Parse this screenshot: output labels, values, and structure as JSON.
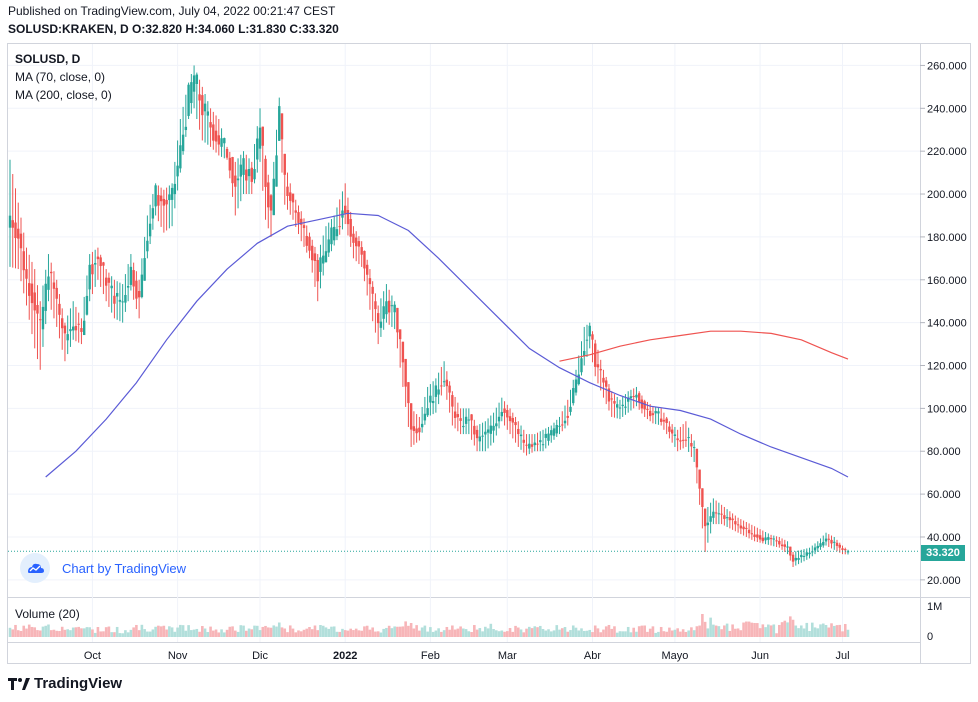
{
  "header": {
    "published": "Published on TradingView.com, July 04, 2022 00:21:47 CEST",
    "ohlc": "SOLUSD:KRAKEN, D O:32.820 H:34.060 L:31.830 C:33.320"
  },
  "legend": {
    "symbol": "SOLUSD, D",
    "ma70": "MA (70, close, 0)",
    "ma200": "MA (200, close, 0)",
    "volume": "Volume (20)"
  },
  "badge": {
    "text": "Chart by TradingView",
    "icon": "tradingview-cloud-icon"
  },
  "footer": {
    "text": "TradingView",
    "icon": "tradingview-logo-icon"
  },
  "price_tag": "33.320",
  "colors": {
    "up": "#26a69a",
    "down": "#ef5350",
    "ma70": "#5b5bd6",
    "ma200": "#ef5350",
    "vol_up": "#b2dfdb",
    "vol_down": "#f7b5b8",
    "grid": "#f0f3fa"
  },
  "chart_data": {
    "type": "candlestick",
    "symbol": "SOLUSD:KRAKEN",
    "interval": "D",
    "last": {
      "open": 32.82,
      "high": 34.06,
      "low": 31.83,
      "close": 33.32
    },
    "y_axis": {
      "ticks": [
        "20.000",
        "40.000",
        "60.000",
        "80.000",
        "100.000",
        "120.000",
        "140.000",
        "160.000",
        "180.000",
        "200.000",
        "220.000",
        "240.000",
        "260.000"
      ],
      "range": [
        12,
        270
      ]
    },
    "volume_axis": {
      "ticks": [
        "0",
        "1M"
      ]
    },
    "x_axis": {
      "ticks": [
        "Oct",
        "Nov",
        "Dic",
        "2022",
        "Feb",
        "Mar",
        "Abr",
        "Mayo",
        "Jun",
        "Jul"
      ]
    },
    "anchors": [
      [
        "2021-09-01",
        190,
        216,
        166
      ],
      [
        "2021-09-04",
        180,
        196,
        165
      ],
      [
        "2021-09-07",
        160,
        175,
        148
      ],
      [
        "2021-09-10",
        148,
        165,
        128
      ],
      [
        "2021-09-12",
        138,
        150,
        118
      ],
      [
        "2021-09-15",
        165,
        172,
        150
      ],
      [
        "2021-09-18",
        150,
        160,
        138
      ],
      [
        "2021-09-21",
        132,
        140,
        122
      ],
      [
        "2021-09-24",
        140,
        150,
        132
      ],
      [
        "2021-09-27",
        134,
        142,
        130
      ],
      [
        "2021-09-30",
        165,
        172,
        150
      ],
      [
        "2021-10-03",
        170,
        175,
        160
      ],
      [
        "2021-10-06",
        160,
        165,
        150
      ],
      [
        "2021-10-09",
        152,
        160,
        142
      ],
      [
        "2021-10-12",
        150,
        158,
        140
      ],
      [
        "2021-10-15",
        165,
        172,
        155
      ],
      [
        "2021-10-18",
        150,
        160,
        142
      ],
      [
        "2021-10-21",
        182,
        190,
        170
      ],
      [
        "2021-10-24",
        200,
        205,
        190
      ],
      [
        "2021-10-27",
        195,
        202,
        182
      ],
      [
        "2021-10-30",
        198,
        205,
        185
      ],
      [
        "2021-11-02",
        220,
        235,
        210
      ],
      [
        "2021-11-05",
        245,
        252,
        235
      ],
      [
        "2021-11-07",
        255,
        260,
        240
      ],
      [
        "2021-11-10",
        240,
        250,
        225
      ],
      [
        "2021-11-13",
        232,
        240,
        222
      ],
      [
        "2021-11-16",
        225,
        235,
        218
      ],
      [
        "2021-11-19",
        220,
        222,
        216
      ],
      [
        "2021-11-22",
        205,
        215,
        190
      ],
      [
        "2021-11-25",
        212,
        220,
        200
      ],
      [
        "2021-11-28",
        208,
        215,
        200
      ],
      [
        "2021-12-01",
        230,
        240,
        215
      ],
      [
        "2021-12-03",
        205,
        218,
        188
      ],
      [
        "2021-12-05",
        190,
        200,
        180
      ],
      [
        "2021-12-08",
        238,
        245,
        225
      ],
      [
        "2021-12-10",
        205,
        215,
        195
      ],
      [
        "2021-12-13",
        195,
        200,
        188
      ],
      [
        "2021-12-16",
        185,
        192,
        178
      ],
      [
        "2021-12-19",
        178,
        182,
        170
      ],
      [
        "2021-12-22",
        162,
        172,
        150
      ],
      [
        "2021-12-25",
        175,
        185,
        168
      ],
      [
        "2021-12-28",
        183,
        190,
        176
      ],
      [
        "2022-01-01",
        195,
        205,
        186
      ],
      [
        "2022-01-04",
        178,
        185,
        170
      ],
      [
        "2022-01-07",
        172,
        178,
        166
      ],
      [
        "2022-01-10",
        158,
        165,
        146
      ],
      [
        "2022-01-13",
        138,
        148,
        130
      ],
      [
        "2022-01-16",
        150,
        158,
        140
      ],
      [
        "2022-01-19",
        145,
        150,
        137
      ],
      [
        "2022-01-22",
        122,
        130,
        110
      ],
      [
        "2022-01-25",
        92,
        100,
        82
      ],
      [
        "2022-01-28",
        90,
        96,
        85
      ],
      [
        "2022-01-31",
        102,
        110,
        96
      ],
      [
        "2022-02-03",
        108,
        114,
        98
      ],
      [
        "2022-02-06",
        115,
        122,
        110
      ],
      [
        "2022-02-09",
        100,
        108,
        92
      ],
      [
        "2022-02-12",
        92,
        100,
        88
      ],
      [
        "2022-02-15",
        96,
        100,
        88
      ],
      [
        "2022-02-18",
        85,
        92,
        80
      ],
      [
        "2022-02-21",
        88,
        94,
        80
      ],
      [
        "2022-02-24",
        92,
        98,
        84
      ],
      [
        "2022-02-27",
        100,
        105,
        94
      ],
      [
        "2022-03-02",
        96,
        100,
        88
      ],
      [
        "2022-03-05",
        88,
        94,
        82
      ],
      [
        "2022-03-08",
        82,
        88,
        78
      ],
      [
        "2022-03-11",
        83,
        88,
        80
      ],
      [
        "2022-03-14",
        85,
        90,
        80
      ],
      [
        "2022-03-17",
        88,
        92,
        84
      ],
      [
        "2022-03-20",
        92,
        96,
        88
      ],
      [
        "2022-03-23",
        98,
        104,
        92
      ],
      [
        "2022-03-26",
        112,
        118,
        106
      ],
      [
        "2022-03-29",
        130,
        138,
        120
      ],
      [
        "2022-03-31",
        136,
        140,
        128
      ],
      [
        "2022-04-02",
        122,
        132,
        115
      ],
      [
        "2022-04-05",
        112,
        118,
        105
      ],
      [
        "2022-04-08",
        102,
        108,
        96
      ],
      [
        "2022-04-11",
        100,
        104,
        95
      ],
      [
        "2022-04-14",
        104,
        108,
        98
      ],
      [
        "2022-04-17",
        106,
        110,
        101
      ],
      [
        "2022-04-20",
        100,
        104,
        96
      ],
      [
        "2022-04-23",
        97,
        101,
        93
      ],
      [
        "2022-04-26",
        96,
        100,
        92
      ],
      [
        "2022-04-29",
        90,
        94,
        86
      ],
      [
        "2022-05-02",
        85,
        90,
        80
      ],
      [
        "2022-05-05",
        87,
        94,
        82
      ],
      [
        "2022-05-08",
        80,
        85,
        75
      ],
      [
        "2022-05-10",
        62,
        70,
        55
      ],
      [
        "2022-05-12",
        45,
        52,
        33
      ],
      [
        "2022-05-15",
        52,
        58,
        46
      ],
      [
        "2022-05-18",
        50,
        55,
        46
      ],
      [
        "2022-05-21",
        48,
        52,
        44
      ],
      [
        "2022-05-24",
        45,
        49,
        42
      ],
      [
        "2022-05-27",
        43,
        47,
        40
      ],
      [
        "2022-05-30",
        41,
        45,
        38
      ],
      [
        "2022-06-02",
        39,
        43,
        37
      ],
      [
        "2022-06-05",
        39,
        41,
        36
      ],
      [
        "2022-06-08",
        37,
        40,
        35
      ],
      [
        "2022-06-11",
        35,
        38,
        32
      ],
      [
        "2022-06-13",
        29,
        33,
        26
      ],
      [
        "2022-06-16",
        31,
        34,
        28
      ],
      [
        "2022-06-19",
        33,
        35,
        30
      ],
      [
        "2022-06-22",
        35,
        38,
        33
      ],
      [
        "2022-06-25",
        39,
        42,
        36
      ],
      [
        "2022-06-28",
        37,
        40,
        34
      ],
      [
        "2022-07-01",
        34,
        36,
        32
      ],
      [
        "2022-07-03",
        33.32,
        34.06,
        31.83
      ]
    ],
    "ma70_points": [
      [
        "2021-09-14",
        68
      ],
      [
        "2021-09-25",
        80
      ],
      [
        "2021-10-06",
        95
      ],
      [
        "2021-10-17",
        112
      ],
      [
        "2021-10-28",
        132
      ],
      [
        "2021-11-08",
        150
      ],
      [
        "2021-11-19",
        165
      ],
      [
        "2021-11-30",
        177
      ],
      [
        "2021-12-11",
        185
      ],
      [
        "2021-12-22",
        188
      ],
      [
        "2022-01-02",
        191
      ],
      [
        "2022-01-13",
        190
      ],
      [
        "2022-01-24",
        183
      ],
      [
        "2022-02-04",
        170
      ],
      [
        "2022-02-15",
        156
      ],
      [
        "2022-02-26",
        142
      ],
      [
        "2022-03-09",
        128
      ],
      [
        "2022-03-20",
        119
      ],
      [
        "2022-03-31",
        112
      ],
      [
        "2022-04-11",
        106
      ],
      [
        "2022-04-22",
        101
      ],
      [
        "2022-05-03",
        99
      ],
      [
        "2022-05-14",
        95
      ],
      [
        "2022-05-25",
        88
      ],
      [
        "2022-06-05",
        82
      ],
      [
        "2022-06-16",
        77
      ],
      [
        "2022-06-27",
        72
      ],
      [
        "2022-07-03",
        68
      ]
    ],
    "ma200_points": [
      [
        "2022-03-20",
        122
      ],
      [
        "2022-03-31",
        125
      ],
      [
        "2022-04-11",
        129
      ],
      [
        "2022-04-22",
        132
      ],
      [
        "2022-05-03",
        134
      ],
      [
        "2022-05-14",
        136
      ],
      [
        "2022-05-25",
        136
      ],
      [
        "2022-06-05",
        135
      ],
      [
        "2022-06-16",
        132
      ],
      [
        "2022-06-27",
        126
      ],
      [
        "2022-07-03",
        123
      ]
    ]
  }
}
